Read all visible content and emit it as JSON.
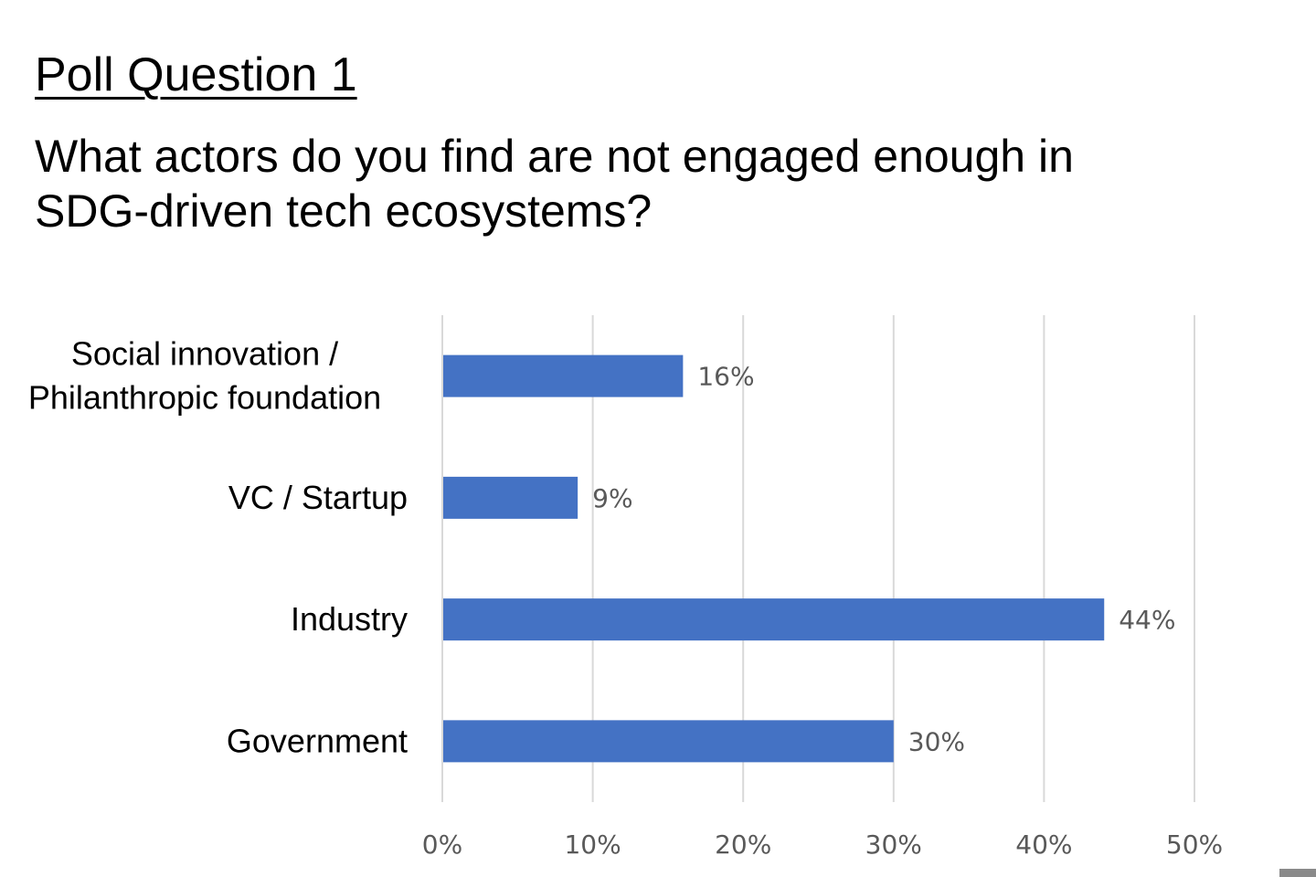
{
  "slide": {
    "heading": "Poll Question 1",
    "question_lines": [
      "What actors do you find are not engaged enough in",
      "SDG-driven tech ecosystems?"
    ]
  },
  "colors": {
    "bar": "#4472c4",
    "grid": "#d9d9d9",
    "tick_text": "#595959",
    "category_text": "#000000"
  },
  "chart_data": {
    "type": "bar",
    "orientation": "horizontal",
    "categories": [
      [
        "Social innovation /",
        "Philanthropic foundation"
      ],
      [
        "VC / Startup"
      ],
      [
        "Industry"
      ],
      [
        "Government"
      ]
    ],
    "values": [
      16,
      9,
      44,
      30
    ],
    "data_labels": [
      "16%",
      "9%",
      "44%",
      "30%"
    ],
    "xlim": [
      0,
      50
    ],
    "x_ticks": [
      0,
      10,
      20,
      30,
      40,
      50
    ],
    "x_tick_labels": [
      "0%",
      "10%",
      "20%",
      "30%",
      "40%",
      "50%"
    ],
    "grid": true,
    "legend": "none"
  }
}
